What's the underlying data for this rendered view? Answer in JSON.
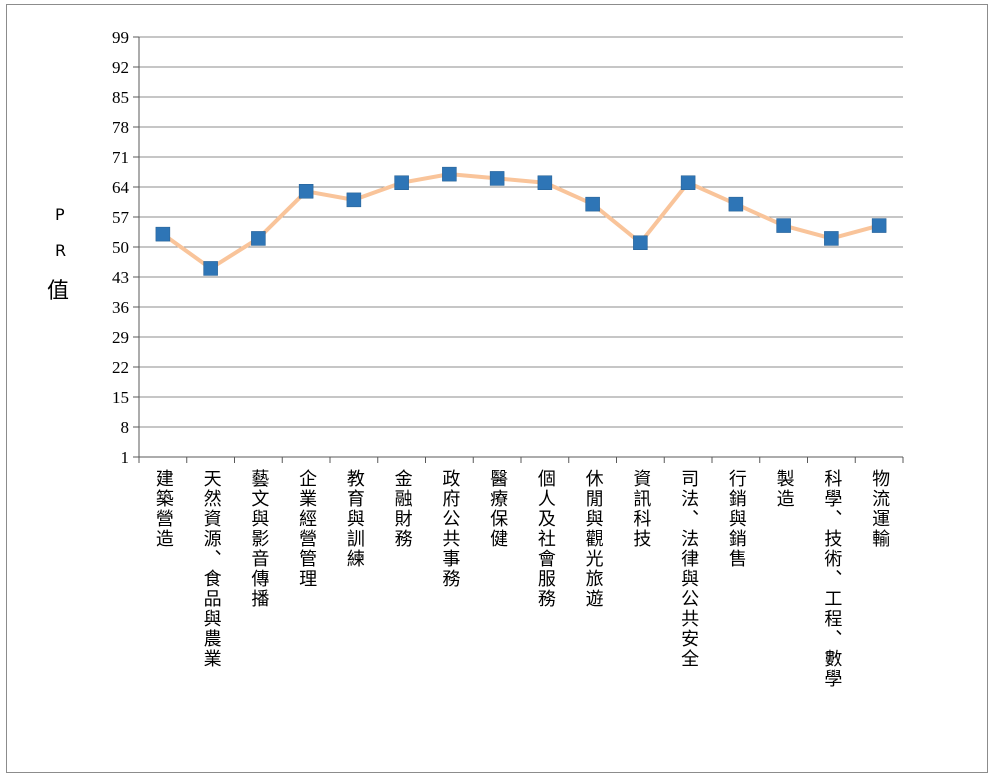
{
  "chart_data": {
    "type": "line",
    "title": "",
    "xlabel": "",
    "ylabel": "PR值",
    "ylim": [
      1,
      99
    ],
    "yticks": [
      1,
      8,
      15,
      22,
      29,
      36,
      43,
      50,
      57,
      64,
      71,
      78,
      85,
      92,
      99
    ],
    "grid": true,
    "legend": "none",
    "categories": [
      "建築營造",
      "天然資源、食品與農業",
      "藝文與影音傳播",
      "企業經營管理",
      "教育與訓練",
      "金融財務",
      "政府公共事務",
      "醫療保健",
      "個人及社會服務",
      "休閒與觀光旅遊",
      "資訊科技",
      "司法、法律與公共安全",
      "行銷與銷售",
      "製造",
      "科學、技術、工程、數學",
      "物流運輸"
    ],
    "series": [
      {
        "values": [
          53,
          45,
          52,
          63,
          61,
          65,
          67,
          66,
          65,
          60,
          51,
          65,
          60,
          55,
          52,
          55
        ]
      }
    ],
    "colors": {
      "line": "#f9c49a",
      "marker": "#2e75b6",
      "grid": "#8c8c8c",
      "axis": "#595959"
    }
  }
}
